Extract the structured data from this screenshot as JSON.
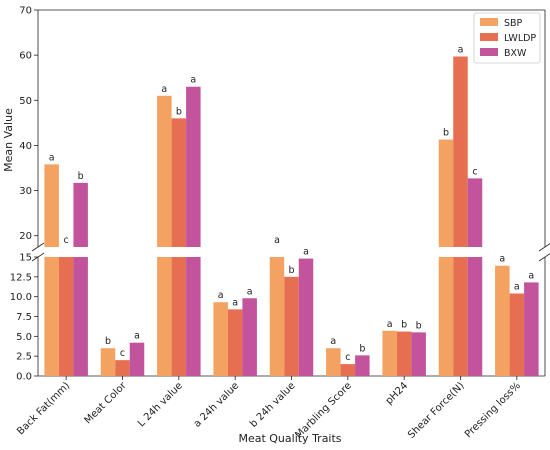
{
  "chart_data": {
    "type": "bar",
    "xlabel": "Meat Quality Traits",
    "ylabel": "Mean Value",
    "broken_axis": true,
    "lower_ylim": [
      0,
      15
    ],
    "upper_ylim": [
      17.5,
      70
    ],
    "lower_yticks": [
      "0.0",
      "2.5",
      "5.0",
      "7.5",
      "10.0",
      "12.5",
      "15"
    ],
    "upper_yticks": [
      "20",
      "30",
      "40",
      "50",
      "60",
      "70"
    ],
    "legend_position": "top-right",
    "categories": [
      "Back Fat(mm)",
      "Meat Color",
      "L 24h value",
      "a 24h value",
      "b 24h value",
      "Marbling Score",
      "pH24",
      "Shear Force(N)",
      "Pressing loss%"
    ],
    "series": [
      {
        "name": "SBP",
        "color": "#f4a261",
        "values": [
          35.8,
          3.5,
          51.0,
          9.3,
          15.5,
          3.5,
          5.7,
          41.3,
          13.9
        ],
        "letters": [
          "a",
          "b",
          "a",
          "a",
          "a",
          "a",
          "a",
          "b",
          "a"
        ]
      },
      {
        "name": "LWLDP",
        "color": "#e76f51",
        "values": [
          17.1,
          2.0,
          46.0,
          8.4,
          12.5,
          1.5,
          5.6,
          59.7,
          10.4
        ],
        "letters": [
          "c",
          "c",
          "b",
          "a",
          "b",
          "c",
          "b",
          "a",
          "a"
        ]
      },
      {
        "name": "BXW",
        "color": "#c2549d",
        "values": [
          31.7,
          4.2,
          53.0,
          9.8,
          14.8,
          2.6,
          5.5,
          32.7,
          11.8
        ],
        "letters": [
          "b",
          "a",
          "a",
          "a",
          "a",
          "b",
          "b",
          "c",
          "a"
        ]
      }
    ]
  }
}
